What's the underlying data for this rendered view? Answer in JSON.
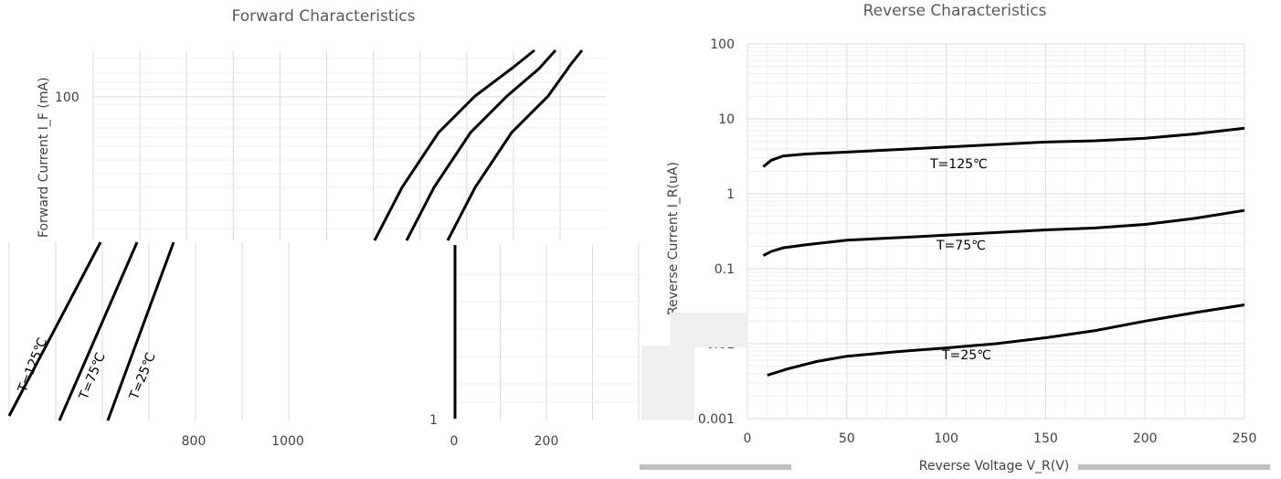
{
  "chart_data": [
    {
      "type": "line",
      "title": "Forward Characteristics",
      "ylabel": "Forward Current I_F (mA)",
      "xlabel": "",
      "y_scale": "log",
      "y_tick_labels": [
        "100",
        "1"
      ],
      "x_tick_labels": [
        "800",
        "1000",
        "0",
        "200"
      ],
      "series": [
        {
          "name": "T=125℃",
          "points": [
            [
              410,
              263
            ],
            [
              440,
              205
            ],
            [
              480,
              145
            ],
            [
              520,
              105
            ],
            [
              560,
              75
            ],
            [
              585,
              55
            ]
          ]
        },
        {
          "name": "T=75℃",
          "points": [
            [
              445,
              263
            ],
            [
              475,
              205
            ],
            [
              515,
              145
            ],
            [
              555,
              105
            ],
            [
              590,
              75
            ],
            [
              608,
              55
            ]
          ]
        },
        {
          "name": "T=25℃",
          "points": [
            [
              490,
              263
            ],
            [
              520,
              205
            ],
            [
              560,
              145
            ],
            [
              600,
              105
            ],
            [
              625,
              70
            ],
            [
              637,
              55
            ]
          ]
        }
      ],
      "annotations": [
        "T=125℃",
        "T=75℃",
        "T=25℃"
      ]
    },
    {
      "type": "line",
      "title": "Reverse Characteristics",
      "xlabel": "Reverse Voltage V_R(V)",
      "ylabel": "Reverse Current I_R(uA)",
      "y_scale": "log",
      "ylim": [
        0.001,
        100
      ],
      "xlim": [
        0,
        250
      ],
      "x_ticks": [
        0,
        50,
        100,
        150,
        200,
        250
      ],
      "y_ticks": [
        0.001,
        0.01,
        0.1,
        1,
        10,
        100
      ],
      "y_tick_labels": [
        "0.001",
        "0.01",
        "0.1",
        "1",
        "10",
        "100"
      ],
      "series": [
        {
          "name": "T=125℃",
          "x": [
            8,
            12,
            18,
            30,
            50,
            100,
            150,
            175,
            200,
            225,
            250
          ],
          "y": [
            2.3,
            2.8,
            3.2,
            3.4,
            3.6,
            4.2,
            4.9,
            5.1,
            5.5,
            6.3,
            7.5
          ]
        },
        {
          "name": "T=75℃",
          "x": [
            8,
            12,
            18,
            30,
            50,
            100,
            150,
            175,
            200,
            225,
            250
          ],
          "y": [
            0.15,
            0.17,
            0.19,
            0.21,
            0.24,
            0.28,
            0.33,
            0.35,
            0.39,
            0.47,
            0.6
          ]
        },
        {
          "name": "T=25℃",
          "x": [
            10,
            20,
            35,
            50,
            75,
            100,
            125,
            150,
            175,
            200,
            225,
            250
          ],
          "y": [
            0.0038,
            0.0046,
            0.0058,
            0.0068,
            0.0078,
            0.0088,
            0.01,
            0.012,
            0.015,
            0.02,
            0.026,
            0.033
          ]
        }
      ],
      "annotations": [
        "T=125℃",
        "T=75℃",
        "T=25℃"
      ]
    }
  ]
}
